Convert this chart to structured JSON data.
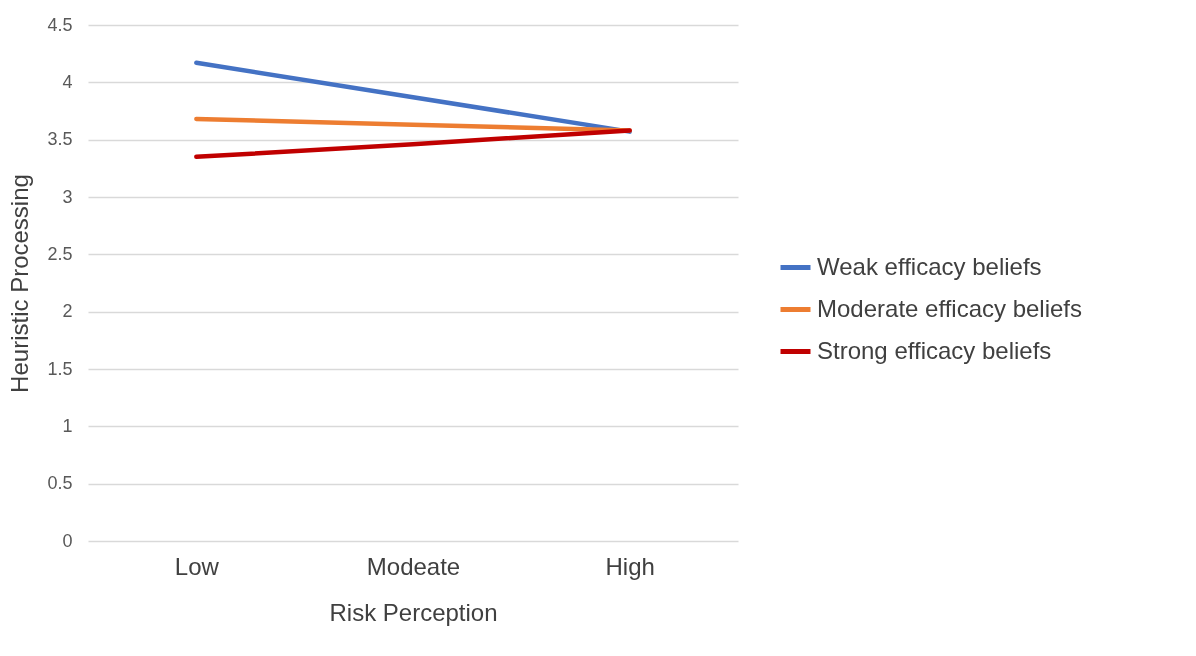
{
  "chart_data": {
    "type": "line",
    "xlabel": "Risk Perception",
    "ylabel": "Heuristic Processing",
    "categories": [
      "Low",
      "Modeate",
      "High"
    ],
    "series": [
      {
        "name": "Weak efficacy beliefs",
        "color": "#4472c4",
        "values": [
          4.17,
          3.87,
          3.57
        ]
      },
      {
        "name": "Moderate efficacy beliefs",
        "color": "#ed7d31",
        "values": [
          3.68,
          3.63,
          3.58
        ]
      },
      {
        "name": "Strong efficacy beliefs",
        "color": "#c00000",
        "values": [
          3.35,
          3.46,
          3.58
        ]
      }
    ],
    "ylim": [
      0,
      4.5
    ],
    "yticks": [
      0,
      0.5,
      1,
      1.5,
      2,
      2.5,
      3,
      3.5,
      4,
      4.5
    ],
    "grid": "y",
    "legend": "right",
    "marker": "none",
    "line_style": "solid"
  }
}
